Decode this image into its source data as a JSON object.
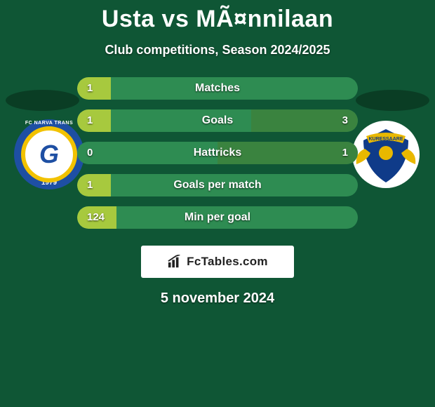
{
  "header": {
    "title": "Usta vs MÃ¤nnilaan",
    "subtitle": "Club competitions, Season 2024/2025"
  },
  "colors": {
    "background": "#0f5635",
    "shadow": "#0a3d24",
    "pill_base": "#2e8c52",
    "fill_left": "#a7c93e",
    "fill_right": "#3a833f",
    "text": "#ffffff"
  },
  "crest_left": {
    "name": "FC Narva Trans",
    "arc_text": "FC NARVA TRANS",
    "year": "1979",
    "letter": "G",
    "disc": "#1e4fa3",
    "ring": "#f2c200",
    "inner": "#ffffff"
  },
  "crest_right": {
    "name": "Kuressaare FC",
    "arc_text": "KURESSAARE",
    "shield_primary": "#0f3b89",
    "shield_accent": "#e9b800"
  },
  "stats": [
    {
      "label": "Matches",
      "left_value": "1",
      "right_value": "",
      "left_fill_pct": 12,
      "right_fill_pct": 0
    },
    {
      "label": "Goals",
      "left_value": "1",
      "right_value": "3",
      "left_fill_pct": 12,
      "right_fill_pct": 38
    },
    {
      "label": "Hattricks",
      "left_value": "0",
      "right_value": "1",
      "left_fill_pct": 0,
      "right_fill_pct": 50
    },
    {
      "label": "Goals per match",
      "left_value": "1",
      "right_value": "",
      "left_fill_pct": 12,
      "right_fill_pct": 0
    },
    {
      "label": "Min per goal",
      "left_value": "124",
      "right_value": "",
      "left_fill_pct": 14,
      "right_fill_pct": 0
    }
  ],
  "brand": {
    "text": "FcTables.com",
    "text_color": "#222222",
    "box_bg": "#ffffff"
  },
  "footer": {
    "date": "5 november 2024"
  }
}
